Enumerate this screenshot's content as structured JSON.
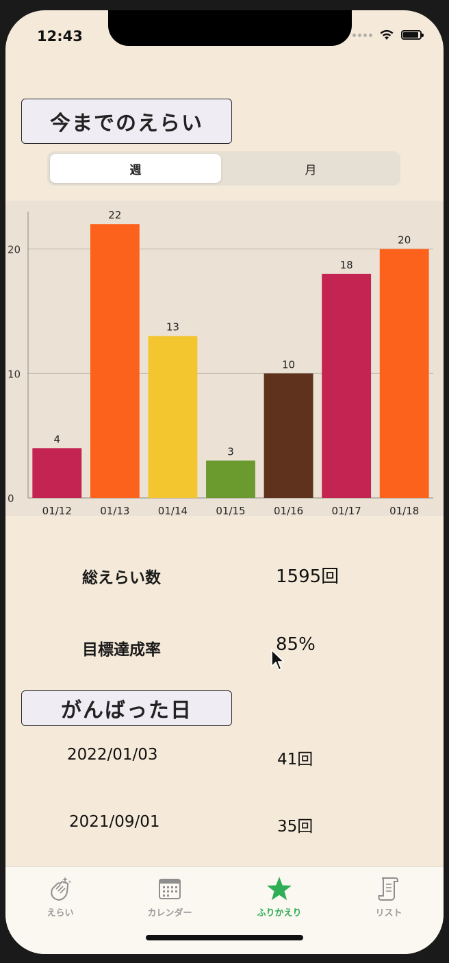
{
  "status": {
    "time": "12:43"
  },
  "header": {
    "title": "今までのえらい"
  },
  "segment": {
    "week_label": "週",
    "month_label": "月",
    "selected": "週"
  },
  "chart_data": {
    "type": "bar",
    "categories": [
      "01/12",
      "01/13",
      "01/14",
      "01/15",
      "01/16",
      "01/17",
      "01/18"
    ],
    "values": [
      4,
      22,
      13,
      3,
      10,
      18,
      20
    ],
    "colors": [
      "#c42452",
      "#fd621d",
      "#f3c52e",
      "#6b9a2e",
      "#5f321d",
      "#c42452",
      "#fd621d"
    ],
    "ylim": [
      0,
      23
    ],
    "yticks": [
      0,
      10,
      20
    ],
    "grid": true,
    "data_labels": true
  },
  "stats": {
    "total_label": "総えらい数",
    "total_value": "1595回",
    "rate_label": "目標達成率",
    "rate_value": "85%"
  },
  "best_days": {
    "title": "がんばった日",
    "items": [
      {
        "date": "2022/01/03",
        "count": "41回"
      },
      {
        "date": "2021/09/01",
        "count": "35回"
      }
    ]
  },
  "tabbar": {
    "items": [
      {
        "label": "えらい",
        "icon": "clapping-hands-icon"
      },
      {
        "label": "カレンダー",
        "icon": "calendar-icon"
      },
      {
        "label": "ふりかえり",
        "icon": "star-icon"
      },
      {
        "label": "リスト",
        "icon": "scroll-icon"
      }
    ],
    "active_index": 2,
    "active_color": "#2fae55"
  }
}
